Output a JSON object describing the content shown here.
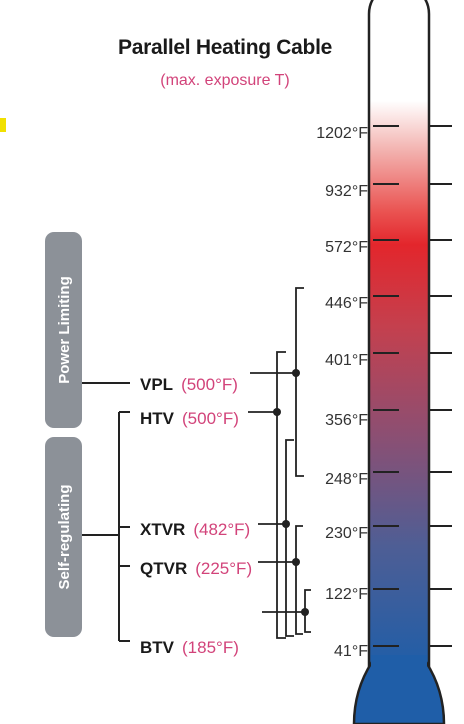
{
  "title": "Parallel Heating Cable",
  "subtitle": "(max. exposure T)",
  "categories": [
    {
      "id": "power-limiting",
      "label": "Power Limiting"
    },
    {
      "id": "self-regulating",
      "label": "Self-regulating"
    }
  ],
  "temperature_scale": [
    "1202°F",
    "932°F",
    "572°F",
    "446°F",
    "401°F",
    "356°F",
    "248°F",
    "230°F",
    "122°F",
    "41°F"
  ],
  "cables": [
    {
      "name": "VPL",
      "temp": "(500°F)",
      "category": "Power Limiting"
    },
    {
      "name": "HTV",
      "temp": "(500°F)",
      "category": "Self-regulating"
    },
    {
      "name": "XTVR",
      "temp": "(482°F)",
      "category": "Self-regulating"
    },
    {
      "name": "QTVR",
      "temp": "(225°F)",
      "category": "Self-regulating"
    },
    {
      "name": "BTV",
      "temp": "(185°F)",
      "category": "Self-regulating"
    }
  ],
  "colors": {
    "title": "#1a1a1a",
    "accent_pink": "#d2437a",
    "category_box": "#8c9198",
    "thermo_hot": "#e3262c",
    "thermo_cold": "#1f5ea8"
  }
}
